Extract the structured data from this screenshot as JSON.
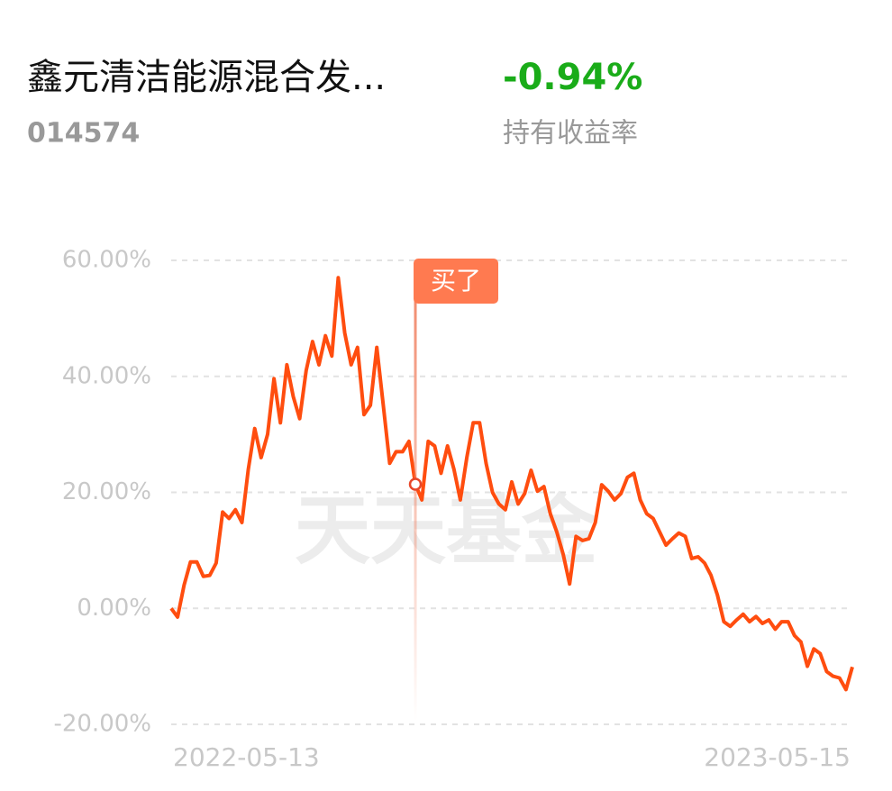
{
  "header": {
    "title": "鑫元清洁能源混合发...",
    "code": "014574",
    "return_value": "-0.94%",
    "return_label": "持有收益率"
  },
  "chart_data": {
    "type": "line",
    "watermark": "天天基金",
    "categories": [
      "2022-05-13",
      null,
      null,
      null,
      null,
      null,
      null,
      null,
      null,
      null,
      null,
      null,
      null,
      null,
      null,
      null,
      null,
      null,
      null,
      null,
      null,
      null,
      null,
      null,
      null,
      null,
      null,
      null,
      null,
      null,
      null,
      null,
      null,
      null,
      null,
      null,
      null,
      null,
      null,
      null,
      null,
      null,
      null,
      null,
      null,
      null,
      null,
      null,
      null,
      null,
      null,
      null,
      null,
      null,
      null,
      null,
      null,
      null,
      null,
      null,
      null,
      null,
      null,
      null,
      null,
      null,
      null,
      null,
      null,
      null,
      null,
      null,
      null,
      null,
      null,
      null,
      null,
      null,
      null,
      null,
      null,
      null,
      null,
      null,
      null,
      null,
      null,
      null,
      null,
      null,
      null,
      null,
      null,
      null,
      null,
      null,
      null,
      null,
      null,
      null,
      null,
      null,
      null,
      null,
      null,
      null,
      "2023-05-15"
    ],
    "series": [
      {
        "color": "#ff4d0f",
        "values": [
          0,
          -1.5,
          4,
          8,
          8,
          5.5,
          5.7,
          7.8,
          16.6,
          15.5,
          17,
          14.8,
          24,
          31,
          26,
          30,
          39.6,
          32,
          42,
          36.5,
          32.7,
          41,
          46,
          42,
          47,
          43.5,
          57,
          47.5,
          42,
          45,
          33.4,
          35,
          45,
          35,
          25,
          27,
          27,
          28.8,
          21.4,
          18.7,
          28.8,
          28,
          23.3,
          28,
          24,
          18.7,
          26,
          32,
          32,
          25,
          20,
          18,
          17,
          21.8,
          18,
          19.8,
          23.8,
          20.2,
          21,
          16.3,
          13.2,
          9.3,
          4.2,
          12.4,
          11.7,
          12,
          14.8,
          21.3,
          20.2,
          18.7,
          19.8,
          22.6,
          23.3,
          18.7,
          16.3,
          15.5,
          13.2,
          10.9,
          12,
          13,
          12.4,
          8.6,
          8.9,
          7.8,
          5.7,
          2.3,
          -2.3,
          -3.1,
          -2,
          -1,
          -2.3,
          -1.4,
          -2.6,
          -2,
          -3.6,
          -2.3,
          -2.3,
          -4.7,
          -5.8,
          -10,
          -7,
          -7.8,
          -10.9,
          -11.7,
          -12,
          -14,
          -10.1
        ]
      }
    ],
    "buy_marker": {
      "label": "买了",
      "index": 38
    },
    "ylim": [
      -20,
      60
    ],
    "yticks": [
      {
        "value": -20,
        "label": "-20.00%"
      },
      {
        "value": 0,
        "label": "0.00%"
      },
      {
        "value": 20,
        "label": "20.00%"
      },
      {
        "value": 40,
        "label": "40.00%"
      },
      {
        "value": 60,
        "label": "60.00%"
      }
    ],
    "grid": true
  }
}
